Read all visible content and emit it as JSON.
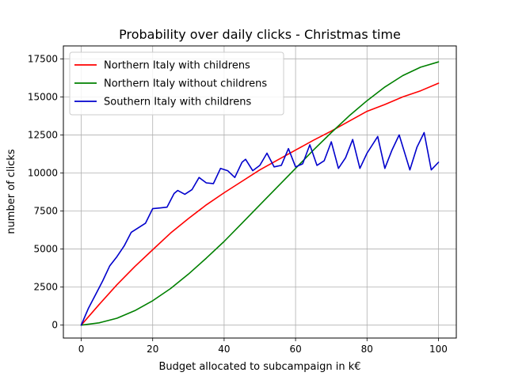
{
  "chart_data": {
    "type": "line",
    "title": "Probability over daily clicks - Christmas time",
    "xlabel": "Budget allocated to subcampaign in k€",
    "ylabel": "number of clicks",
    "xlim": [
      -5,
      105
    ],
    "ylim": [
      -850,
      18350
    ],
    "x_ticks": [
      0,
      20,
      40,
      60,
      80,
      100
    ],
    "y_ticks": [
      0,
      2500,
      5000,
      7500,
      10000,
      12500,
      15000,
      17500
    ],
    "grid": true,
    "legend_position": "top-left",
    "series": [
      {
        "name": "Northern Italy with childrens",
        "color": "#ff0000",
        "points": [
          [
            0,
            0
          ],
          [
            5,
            1350
          ],
          [
            10,
            2650
          ],
          [
            15,
            3850
          ],
          [
            20,
            4950
          ],
          [
            25,
            6050
          ],
          [
            30,
            7000
          ],
          [
            35,
            7900
          ],
          [
            40,
            8700
          ],
          [
            45,
            9450
          ],
          [
            50,
            10200
          ],
          [
            55,
            10850
          ],
          [
            60,
            11500
          ],
          [
            65,
            12150
          ],
          [
            70,
            12750
          ],
          [
            75,
            13400
          ],
          [
            80,
            14050
          ],
          [
            85,
            14500
          ],
          [
            90,
            15000
          ],
          [
            95,
            15400
          ],
          [
            100,
            15900
          ]
        ]
      },
      {
        "name": "Northern Italy without childrens",
        "color": "#008000",
        "points": [
          [
            0,
            0
          ],
          [
            5,
            150
          ],
          [
            10,
            450
          ],
          [
            15,
            950
          ],
          [
            20,
            1600
          ],
          [
            25,
            2400
          ],
          [
            30,
            3350
          ],
          [
            35,
            4400
          ],
          [
            40,
            5500
          ],
          [
            45,
            6700
          ],
          [
            50,
            7900
          ],
          [
            55,
            9100
          ],
          [
            60,
            10300
          ],
          [
            65,
            11500
          ],
          [
            70,
            12650
          ],
          [
            75,
            13750
          ],
          [
            80,
            14750
          ],
          [
            85,
            15650
          ],
          [
            90,
            16400
          ],
          [
            95,
            16950
          ],
          [
            100,
            17300
          ]
        ]
      },
      {
        "name": "Southern Italy with childrens",
        "color": "#0000cc",
        "points": [
          [
            0,
            0
          ],
          [
            2,
            1100
          ],
          [
            4,
            2000
          ],
          [
            6,
            2900
          ],
          [
            8,
            3900
          ],
          [
            10,
            4500
          ],
          [
            12,
            5200
          ],
          [
            14,
            6100
          ],
          [
            16,
            6400
          ],
          [
            18,
            6700
          ],
          [
            20,
            7650
          ],
          [
            22,
            7700
          ],
          [
            24,
            7750
          ],
          [
            26,
            8650
          ],
          [
            27,
            8850
          ],
          [
            29,
            8600
          ],
          [
            31,
            8900
          ],
          [
            33,
            9700
          ],
          [
            35,
            9350
          ],
          [
            37,
            9300
          ],
          [
            39,
            10300
          ],
          [
            41,
            10150
          ],
          [
            43,
            9700
          ],
          [
            45,
            10700
          ],
          [
            46,
            10900
          ],
          [
            48,
            10150
          ],
          [
            50,
            10500
          ],
          [
            52,
            11300
          ],
          [
            54,
            10400
          ],
          [
            56,
            10500
          ],
          [
            58,
            11600
          ],
          [
            60,
            10400
          ],
          [
            62,
            10600
          ],
          [
            64,
            11850
          ],
          [
            66,
            10500
          ],
          [
            68,
            10800
          ],
          [
            70,
            12050
          ],
          [
            72,
            10300
          ],
          [
            74,
            11000
          ],
          [
            76,
            12200
          ],
          [
            78,
            10300
          ],
          [
            80,
            11300
          ],
          [
            83,
            12400
          ],
          [
            85,
            10300
          ],
          [
            87,
            11500
          ],
          [
            89,
            12500
          ],
          [
            92,
            10200
          ],
          [
            94,
            11700
          ],
          [
            96,
            12650
          ],
          [
            98,
            10200
          ],
          [
            100,
            10700
          ]
        ]
      }
    ]
  }
}
